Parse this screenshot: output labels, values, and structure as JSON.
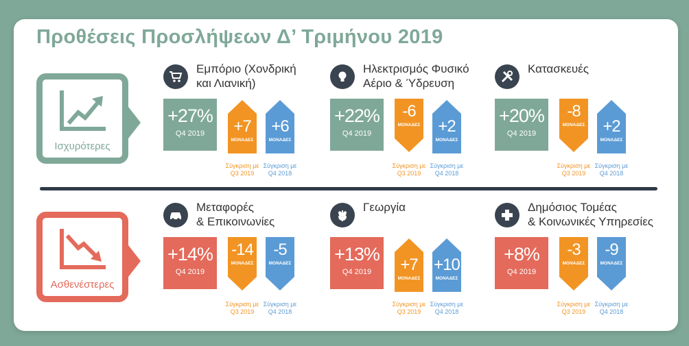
{
  "title": "Προθέσεις Προσλήψεων Δ’ Τριμήνου 2019",
  "categories": {
    "strongest": "Ισχυρότερες",
    "weakest": "Ασθενέστερες"
  },
  "units": "ΜΟΝΑΔΕΣ",
  "period": "Q4 2019",
  "compare_q3": [
    "Σύγκριση με",
    "Q3 2019"
  ],
  "compare_q4": [
    "Σύγκριση με",
    "Q4 2018"
  ],
  "colors": {
    "green": "#7fa898",
    "red": "#e46a5b",
    "orange": "#f29423",
    "blue": "#5b9bd5"
  },
  "sectors": [
    {
      "icon": "cart-icon",
      "name1": "Εμπόριο (Χονδρική",
      "name2": "και Λιανική)",
      "value": "+27%",
      "q3": "+7",
      "q3_dir": "up",
      "q4": "+6",
      "q4_dir": "up"
    },
    {
      "icon": "lightbulb-icon",
      "name1": "Ηλεκτρισμός Φυσικό",
      "name2": "Αέριο & Ύδρευση",
      "value": "+22%",
      "q3": "-6",
      "q3_dir": "down",
      "q4": "+2",
      "q4_dir": "up"
    },
    {
      "icon": "tools-icon",
      "name1": "Κατασκευές",
      "name2": "",
      "value": "+20%",
      "q3": "-8",
      "q3_dir": "down",
      "q4": "+2",
      "q4_dir": "up"
    },
    {
      "icon": "car-icon",
      "name1": "Μεταφορές",
      "name2": "& Επικοινωνίες",
      "value": "+14%",
      "q3": "-14",
      "q3_dir": "down",
      "q4": "-5",
      "q4_dir": "down"
    },
    {
      "icon": "wheat-icon",
      "name1": "Γεωργία",
      "name2": "",
      "value": "+13%",
      "q3": "+7",
      "q3_dir": "up",
      "q4": "+10",
      "q4_dir": "up"
    },
    {
      "icon": "plus-icon",
      "name1": "Δημόσιος Τομέας",
      "name2": "& Κοινωνικές Υπηρεσίες",
      "value": "+8%",
      "q3": "-3",
      "q3_dir": "down",
      "q4": "-9",
      "q4_dir": "down"
    }
  ]
}
